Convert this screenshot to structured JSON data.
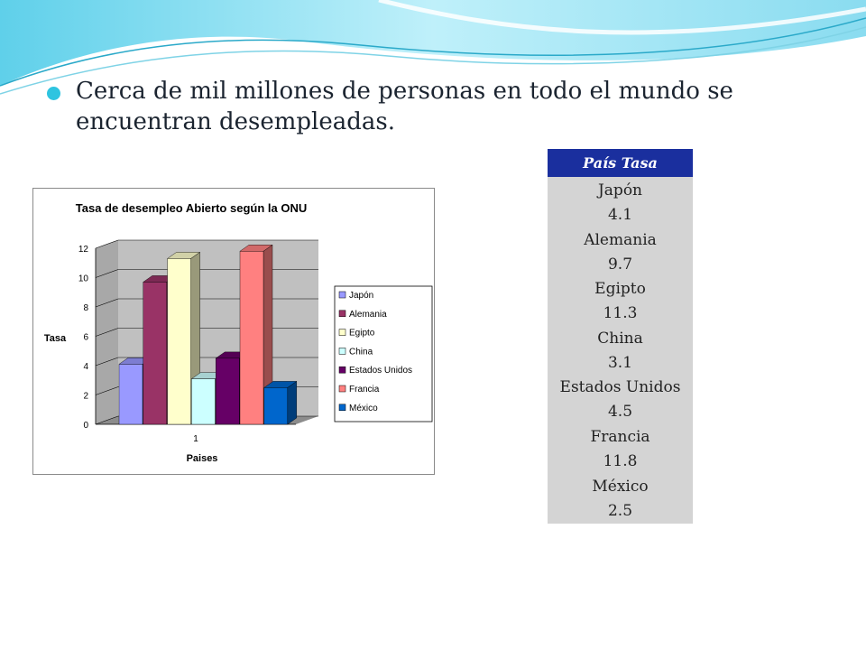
{
  "slide": {
    "bullet_text": "Cerca de mil millones de personas en todo el mundo se encuentran desempleadas."
  },
  "colors": {
    "accent": "#2ec4e0",
    "table_header": "#1a2f9e",
    "table_body": "#d4d4d4"
  },
  "table": {
    "header": "País Tasa",
    "rows": [
      {
        "country": "Japón",
        "rate": "4.1"
      },
      {
        "country": "Alemania",
        "rate": "9.7"
      },
      {
        "country": "Egipto",
        "rate": "11.3"
      },
      {
        "country": "China",
        "rate": "3.1"
      },
      {
        "country": "Estados Unidos",
        "rate": "4.5"
      },
      {
        "country": "Francia",
        "rate": "11.8"
      },
      {
        "country": "México",
        "rate": "2.5"
      }
    ]
  },
  "chart_data": {
    "type": "bar",
    "title": "Tasa de desempleo Abierto según la ONU",
    "xlabel": "Paises",
    "ylabel": "Tasa",
    "categories": [
      "1"
    ],
    "ylim": [
      0,
      12
    ],
    "yticks": [
      0,
      2,
      4,
      6,
      8,
      10,
      12
    ],
    "grid": true,
    "three_d": true,
    "legend_position": "right",
    "series": [
      {
        "name": "Japón",
        "values": [
          4.1
        ],
        "color": "#9999ff"
      },
      {
        "name": "Alemania",
        "values": [
          9.7
        ],
        "color": "#993366"
      },
      {
        "name": "Egipto",
        "values": [
          11.3
        ],
        "color": "#ffffcc"
      },
      {
        "name": "China",
        "values": [
          3.1
        ],
        "color": "#ccffff"
      },
      {
        "name": "Estados Unidos",
        "values": [
          4.5
        ],
        "color": "#660066"
      },
      {
        "name": "Francia",
        "values": [
          11.8
        ],
        "color": "#ff8080"
      },
      {
        "name": "México",
        "values": [
          2.5
        ],
        "color": "#0066cc"
      }
    ]
  }
}
